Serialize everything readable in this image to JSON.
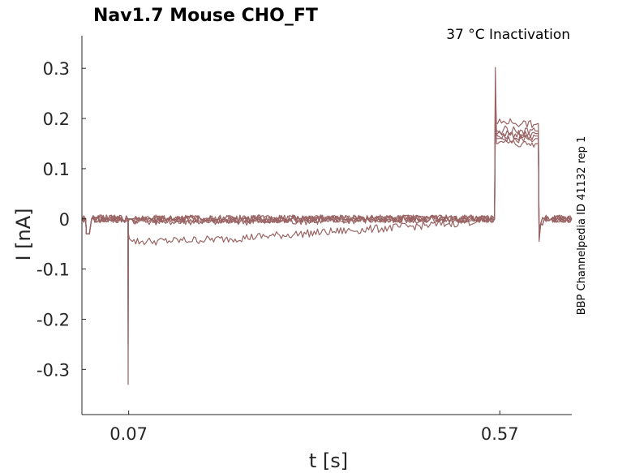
{
  "chart_data": {
    "type": "line",
    "title": "Nav1.7  Mouse  CHO_FT",
    "subtitle": "37 °C  Inactivation",
    "side_label": "BBP Channelpedia ID 41132 rep 1",
    "xlabel": "t [s]",
    "ylabel": "I [nA]",
    "xlim": [
      0.007,
      0.667
    ],
    "ylim": [
      -0.39,
      0.365
    ],
    "x_ticks": [
      0.07,
      0.57
    ],
    "x_tick_labels": [
      "0.07",
      "0.57"
    ],
    "y_ticks": [
      0.3,
      0.2,
      0.1,
      0,
      -0.1,
      -0.2,
      -0.3
    ],
    "y_tick_labels": [
      "0.3",
      "0.2",
      "0.1",
      "0",
      "-0.1",
      "-0.2",
      "-0.3"
    ],
    "grid": false,
    "series_color": "#9a6464",
    "series": [
      {
        "x": [
          0.007,
          0.012,
          0.013,
          0.017,
          0.02,
          0.069,
          0.0693,
          0.0697,
          0.071,
          0.075,
          0.1,
          0.2,
          0.3,
          0.4,
          0.5,
          0.563,
          0.564,
          0.5655,
          0.567,
          0.575,
          0.6,
          0.618,
          0.622,
          0.623,
          0.625,
          0.63,
          0.667
        ],
        "y": [
          0.0,
          0.0,
          -0.03,
          -0.03,
          0.0,
          0.0,
          -0.33,
          -0.002,
          0.0,
          0.0,
          0.0,
          -0.002,
          0.0,
          0.0,
          0.0,
          0.0,
          0.302,
          0.17,
          0.165,
          0.168,
          0.162,
          0.165,
          0.165,
          -0.045,
          -0.01,
          0.0,
          0.0
        ]
      },
      {
        "x": [
          0.007,
          0.012,
          0.013,
          0.017,
          0.02,
          0.069,
          0.0693,
          0.0697,
          0.071,
          0.075,
          0.1,
          0.2,
          0.3,
          0.4,
          0.5,
          0.563,
          0.564,
          0.5655,
          0.567,
          0.575,
          0.6,
          0.618,
          0.622,
          0.623,
          0.625,
          0.63,
          0.667
        ],
        "y": [
          0.0,
          0.0,
          -0.03,
          -0.03,
          0.0,
          0.0,
          -0.25,
          -0.004,
          0.0,
          -0.002,
          -0.004,
          -0.005,
          -0.004,
          -0.002,
          0.0,
          0.0,
          0.27,
          0.15,
          0.15,
          0.152,
          0.15,
          0.15,
          0.15,
          -0.04,
          -0.01,
          0.0,
          0.0
        ]
      },
      {
        "x": [
          0.007,
          0.012,
          0.013,
          0.017,
          0.02,
          0.069,
          0.0693,
          0.0697,
          0.071,
          0.075,
          0.1,
          0.2,
          0.3,
          0.4,
          0.5,
          0.563,
          0.564,
          0.5655,
          0.567,
          0.575,
          0.6,
          0.618,
          0.622,
          0.623,
          0.625,
          0.63,
          0.667
        ],
        "y": [
          0.0,
          0.0,
          -0.03,
          -0.03,
          0.0,
          0.0,
          -0.2,
          -0.03,
          -0.04,
          -0.045,
          -0.045,
          -0.04,
          -0.03,
          -0.02,
          -0.01,
          0.0,
          0.25,
          0.19,
          0.19,
          0.195,
          0.19,
          0.188,
          0.19,
          -0.04,
          -0.01,
          0.0,
          0.0
        ]
      },
      {
        "x": [
          0.007,
          0.012,
          0.013,
          0.017,
          0.02,
          0.069,
          0.0693,
          0.0697,
          0.071,
          0.075,
          0.1,
          0.2,
          0.3,
          0.4,
          0.5,
          0.563,
          0.564,
          0.5655,
          0.567,
          0.575,
          0.6,
          0.618,
          0.622,
          0.623,
          0.625,
          0.63,
          0.667
        ],
        "y": [
          0.0,
          0.0,
          -0.03,
          -0.03,
          0.0,
          0.0,
          -0.1,
          -0.005,
          0.0,
          -0.002,
          -0.002,
          0.0,
          0.0,
          0.0,
          0.0,
          0.0,
          0.23,
          0.175,
          0.175,
          0.178,
          0.176,
          0.175,
          0.175,
          -0.04,
          -0.01,
          0.0,
          0.0
        ]
      },
      {
        "x": [
          0.007,
          0.012,
          0.013,
          0.017,
          0.02,
          0.069,
          0.0693,
          0.0697,
          0.071,
          0.075,
          0.1,
          0.2,
          0.3,
          0.4,
          0.5,
          0.563,
          0.564,
          0.5655,
          0.567,
          0.575,
          0.6,
          0.618,
          0.622,
          0.623,
          0.625,
          0.63,
          0.667
        ],
        "y": [
          0.0,
          0.0,
          -0.03,
          -0.03,
          0.0,
          0.0,
          -0.05,
          0.0,
          0.0,
          0.0,
          0.0,
          0.0,
          0.0,
          0.0,
          0.0,
          0.0,
          0.2,
          0.16,
          0.16,
          0.158,
          0.16,
          0.16,
          0.16,
          -0.035,
          -0.01,
          0.0,
          0.0
        ]
      },
      {
        "x": [
          0.007,
          0.012,
          0.013,
          0.017,
          0.02,
          0.069,
          0.0693,
          0.0697,
          0.071,
          0.075,
          0.1,
          0.2,
          0.3,
          0.4,
          0.5,
          0.563,
          0.564,
          0.5655,
          0.567,
          0.575,
          0.6,
          0.618,
          0.622,
          0.623,
          0.625,
          0.63,
          0.667
        ],
        "y": [
          0.0,
          0.0,
          -0.03,
          -0.03,
          0.0,
          0.0,
          -0.02,
          0.0,
          0.0,
          0.0,
          0.0,
          0.0,
          0.0,
          0.0,
          0.0,
          0.0,
          0.18,
          0.17,
          0.17,
          0.17,
          0.168,
          0.17,
          0.17,
          -0.03,
          -0.01,
          0.0,
          0.0
        ]
      }
    ]
  }
}
